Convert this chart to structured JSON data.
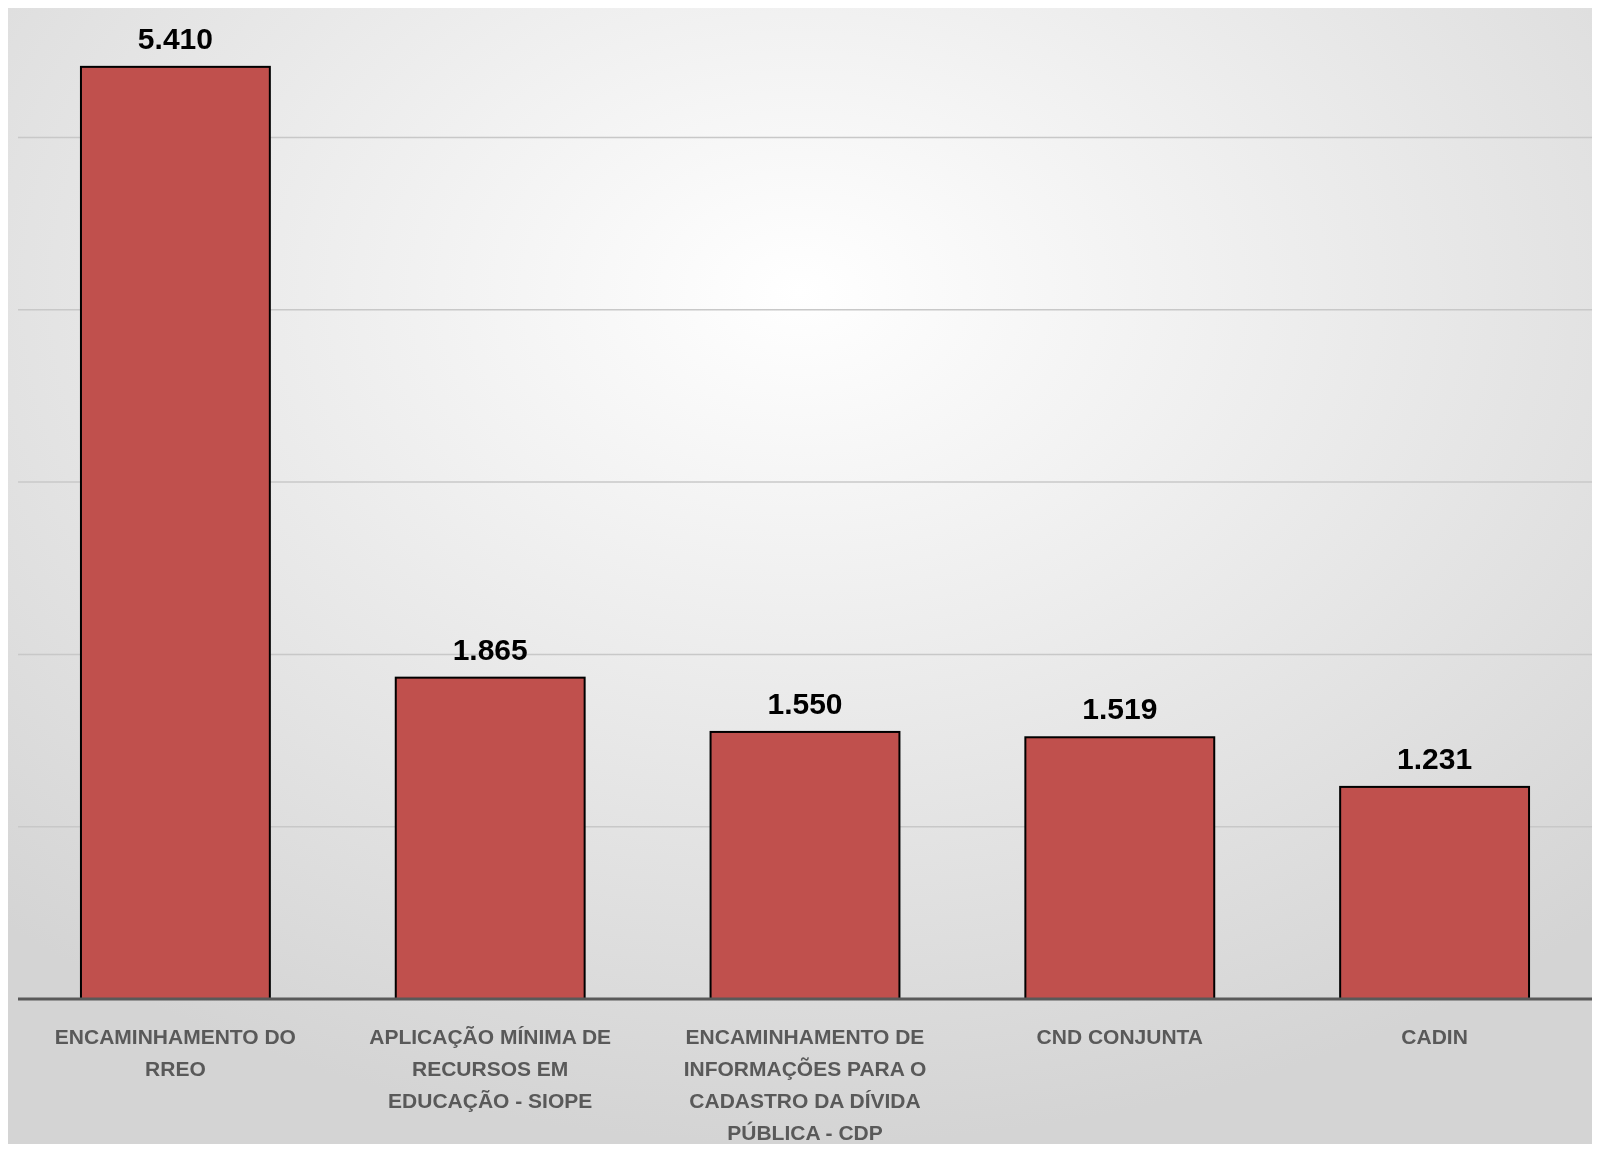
{
  "chart_data": {
    "type": "bar",
    "categories": [
      "ENCAMINHAMENTO DO RREO",
      "APLICAÇÃO MÍNIMA DE RECURSOS EM EDUCAÇÃO - SIOPE",
      "ENCAMINHAMENTO DE INFORMAÇÕES PARA O CADASTRO DA DÍVIDA PÚBLICA - CDP",
      "CND CONJUNTA",
      "CADIN"
    ],
    "values": [
      5410,
      1865,
      1550,
      1519,
      1231
    ],
    "value_labels": [
      "5.410",
      "1.865",
      "1.550",
      "1.519",
      "1.231"
    ],
    "color": "#c0504d",
    "ylim": [
      0,
      5740
    ],
    "yticks": [
      {
        "value": 0,
        "label": null
      },
      {
        "value": 1000,
        "label": null
      },
      {
        "value": 2000,
        "label": null
      },
      {
        "value": 3000,
        "label": null
      },
      {
        "value": 4000,
        "label": null
      },
      {
        "value": 5000,
        "label": null
      }
    ],
    "grid": "y",
    "tick_labels": "x"
  }
}
